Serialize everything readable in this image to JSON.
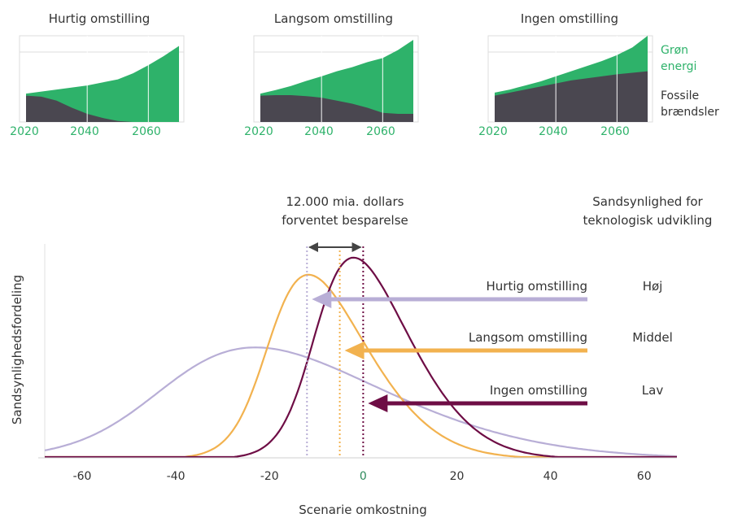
{
  "colors": {
    "green": "#2eb26a",
    "fossil": "#4a4750",
    "grid": "#dcdcdc",
    "fast": "#b8aed6",
    "slow": "#f2b24f",
    "none": "#6e0d45",
    "arrow": "#444444",
    "text": "#333333"
  },
  "top_charts": {
    "legend": {
      "green": "Grøn energi",
      "fossil": "Fossile brændsler"
    },
    "ticks": [
      "2020",
      "2040",
      "2060"
    ]
  },
  "main_chart": {
    "xlabel": "Scenarie omkostning",
    "ylabel": "Sandsynlighedsfordeling",
    "savings_label_line1": "12.000 mia. dollars",
    "savings_label_line2": "forventet besparelse",
    "prob_header_line1": "Sandsynlighed for",
    "prob_header_line2": "teknologisk udvikling",
    "x_ticks": [
      "-60",
      "-40",
      "-20",
      "0",
      "20",
      "40",
      "60"
    ]
  },
  "chart_data": [
    {
      "type": "area",
      "title": "Hurtig omstilling",
      "x": [
        2020,
        2025,
        2030,
        2035,
        2040,
        2045,
        2050,
        2055,
        2060,
        2065,
        2070
      ],
      "series": [
        {
          "name": "Fossile brændsler",
          "values": [
            2.6,
            2.5,
            2.1,
            1.4,
            0.8,
            0.4,
            0.1,
            0,
            0,
            0,
            0
          ]
        },
        {
          "name": "Grøn energi",
          "values": [
            0.2,
            0.5,
            1.1,
            2.0,
            2.8,
            3.5,
            4.1,
            4.8,
            5.6,
            6.5,
            7.5
          ]
        }
      ],
      "ylim": [
        0,
        8.5
      ]
    },
    {
      "type": "area",
      "title": "Langsom omstilling",
      "x": [
        2020,
        2025,
        2030,
        2035,
        2040,
        2045,
        2050,
        2055,
        2060,
        2065,
        2070
      ],
      "series": [
        {
          "name": "Fossile brændsler",
          "values": [
            2.6,
            2.65,
            2.65,
            2.55,
            2.4,
            2.1,
            1.8,
            1.4,
            0.9,
            0.8,
            0.8
          ]
        },
        {
          "name": "Grøn energi",
          "values": [
            0.2,
            0.5,
            0.9,
            1.5,
            2.1,
            2.9,
            3.6,
            4.5,
            5.4,
            6.3,
            7.3
          ]
        }
      ],
      "ylim": [
        0,
        8.5
      ]
    },
    {
      "type": "area",
      "title": "Ingen omstilling",
      "x": [
        2020,
        2025,
        2030,
        2035,
        2040,
        2045,
        2050,
        2055,
        2060,
        2065,
        2070
      ],
      "series": [
        {
          "name": "Fossile brændsler",
          "values": [
            2.6,
            2.9,
            3.2,
            3.5,
            3.8,
            4.1,
            4.3,
            4.5,
            4.7,
            4.85,
            5.0
          ]
        },
        {
          "name": "Grøn energi",
          "values": [
            0.3,
            0.3,
            0.4,
            0.5,
            0.7,
            0.9,
            1.2,
            1.5,
            1.9,
            2.5,
            3.5
          ]
        }
      ],
      "ylim": [
        0,
        8.5
      ]
    },
    {
      "type": "line",
      "xlim": [
        -68,
        67
      ],
      "series": [
        {
          "name": "Hurtig omstilling",
          "probability": "Høj",
          "mean": -12,
          "peak": -28,
          "sigma": 20,
          "height": 0.52
        },
        {
          "name": "Langsom omstilling",
          "probability": "Middel",
          "mean": -5,
          "peak": -13,
          "sigma": 11,
          "height": 0.86
        },
        {
          "name": "Ingen omstilling",
          "probability": "Lav",
          "mean": 0,
          "peak": -3,
          "sigma": 10.5,
          "height": 0.94
        }
      ],
      "savings_range": [
        -12,
        0
      ]
    }
  ]
}
